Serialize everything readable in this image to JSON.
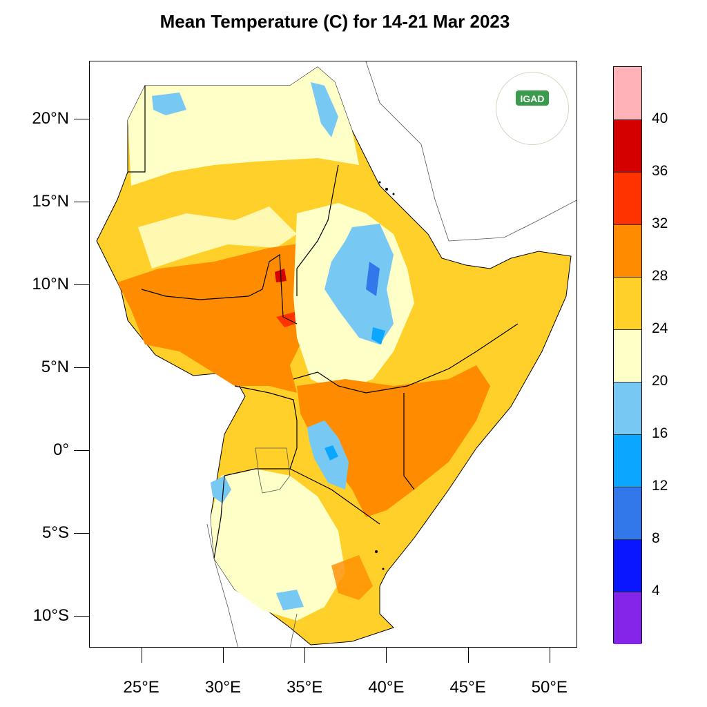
{
  "title": "Mean Temperature (C) for 14-21 Mar 2023",
  "logo": {
    "text": "IGAD"
  },
  "lat_ticks": [
    "20°N",
    "15°N",
    "10°N",
    "5°N",
    "0°",
    "5°S",
    "10°S"
  ],
  "lon_ticks": [
    "25°E",
    "30°E",
    "35°E",
    "40°E",
    "45°E",
    "50°E"
  ],
  "colorbar": {
    "labels": [
      "40",
      "36",
      "32",
      "28",
      "24",
      "20",
      "16",
      "12",
      "8",
      "4"
    ],
    "colors": [
      "#ffb3b8",
      "#d40000",
      "#ff3300",
      "#ff8c00",
      "#ffd02a",
      "#ffffc8",
      "#77c9f4",
      "#0aa6ff",
      "#3378ea",
      "#0a16ff",
      "#8426ea"
    ]
  },
  "chart_data": {
    "type": "heatmap",
    "title": "Mean Temperature (C) for 14-21 Mar 2023",
    "xlim": [
      21.8,
      51.7
    ],
    "ylim": [
      -11.9,
      23.5
    ],
    "x_ticks": [
      25,
      30,
      35,
      40,
      45,
      50
    ],
    "y_ticks": [
      20,
      15,
      10,
      5,
      0,
      -5,
      -10
    ],
    "levels": [
      4,
      8,
      12,
      16,
      20,
      24,
      28,
      32,
      36,
      40
    ]
  }
}
